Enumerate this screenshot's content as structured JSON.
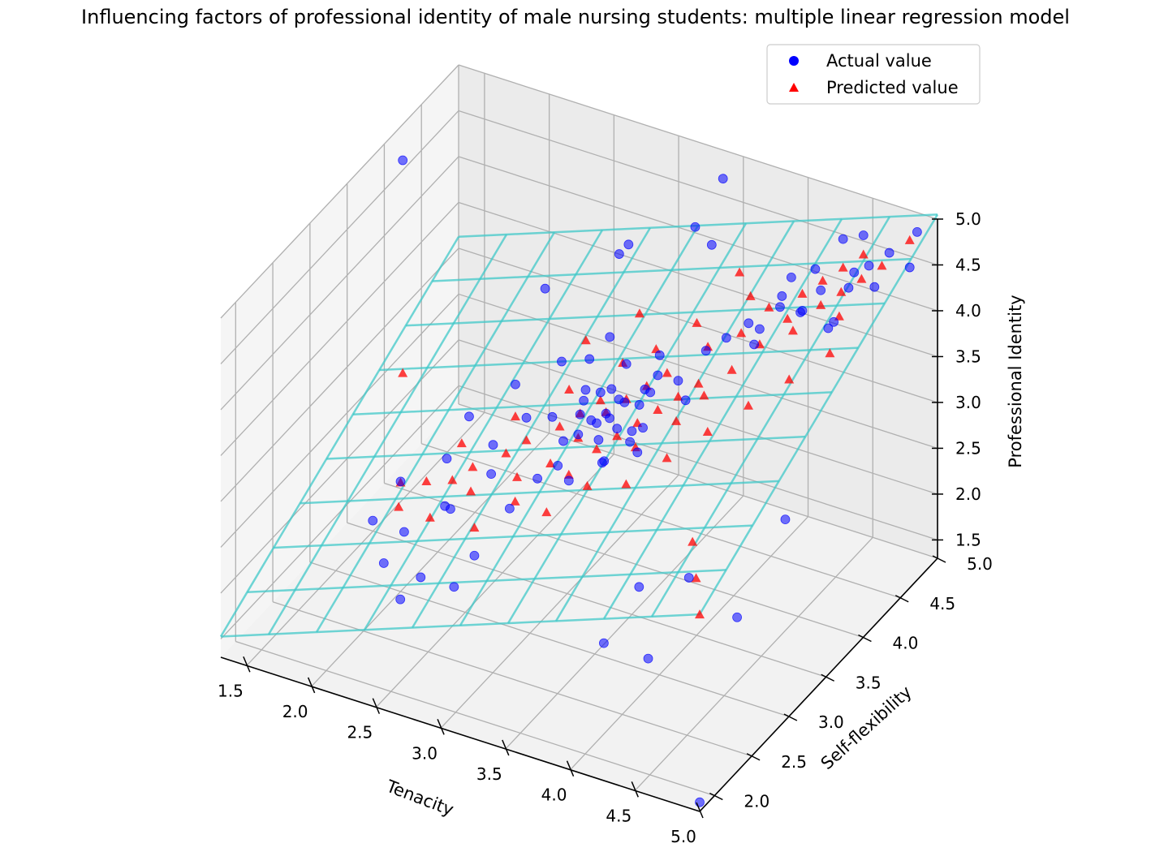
{
  "chart_data": {
    "type": "scatter",
    "projection": "3d",
    "title": "Influencing factors of professional identity of male nursing students: multiple linear regression model",
    "xlabel": "Tenacity",
    "ylabel": "Self-flexibility",
    "zlabel": "Professional Identity",
    "xlim": [
      1.3,
      5.0
    ],
    "ylim": [
      1.8,
      5.0
    ],
    "zlim": [
      1.3,
      5.0
    ],
    "x_ticks": [
      "1.5",
      "2.0",
      "2.5",
      "3.0",
      "3.5",
      "4.0",
      "4.5",
      "5.0"
    ],
    "y_ticks": [
      "2.0",
      "2.5",
      "3.0",
      "3.5",
      "4.0",
      "4.5",
      "5.0"
    ],
    "z_ticks": [
      "1.5",
      "2.0",
      "2.5",
      "3.0",
      "3.5",
      "4.0",
      "4.5",
      "5.0"
    ],
    "grid": true,
    "legend_position": "top-right",
    "regression_plane": {
      "intercept": -0.05,
      "coef_x": 0.52,
      "coef_y": 0.5,
      "color": "#40c8c8"
    },
    "series": [
      {
        "name": "Actual value",
        "marker": "circle",
        "color": "#0000ff",
        "points": [
          [
            3.3,
            3.3,
            3.5
          ],
          [
            3.4,
            3.2,
            3.6
          ],
          [
            3.5,
            3.4,
            3.7
          ],
          [
            3.2,
            3.3,
            3.3
          ],
          [
            3.6,
            3.5,
            3.8
          ],
          [
            3.3,
            3.5,
            3.4
          ],
          [
            3.5,
            3.1,
            3.3
          ],
          [
            3.4,
            3.6,
            3.9
          ],
          [
            3.7,
            3.3,
            3.6
          ],
          [
            3.1,
            3.2,
            3.0
          ],
          [
            3.3,
            3.0,
            3.1
          ],
          [
            3.6,
            3.7,
            4.0
          ],
          [
            3.2,
            3.6,
            3.5
          ],
          [
            3.5,
            3.5,
            3.3
          ],
          [
            3.4,
            3.4,
            3.8
          ],
          [
            3.8,
            3.6,
            3.9
          ],
          [
            3.0,
            3.1,
            2.9
          ],
          [
            3.3,
            3.4,
            3.2
          ],
          [
            3.5,
            3.2,
            3.7
          ],
          [
            3.6,
            3.3,
            3.4
          ],
          [
            3.2,
            3.4,
            3.7
          ],
          [
            3.4,
            3.3,
            3.1
          ],
          [
            3.7,
            3.5,
            4.0
          ],
          [
            3.1,
            3.5,
            3.3
          ],
          [
            3.9,
            3.8,
            4.1
          ],
          [
            3.5,
            3.6,
            3.5
          ],
          [
            3.3,
            3.2,
            3.8
          ],
          [
            3.6,
            3.4,
            3.2
          ],
          [
            3.4,
            3.5,
            3.6
          ],
          [
            3.2,
            3.1,
            3.4
          ],
          [
            4.0,
            3.9,
            4.2
          ],
          [
            3.8,
            3.7,
            3.6
          ],
          [
            3.0,
            3.3,
            3.4
          ],
          [
            3.5,
            3.3,
            3.5
          ],
          [
            3.7,
            3.4,
            3.9
          ],
          [
            4.2,
            4.0,
            4.3
          ],
          [
            4.4,
            4.2,
            4.4
          ],
          [
            4.5,
            4.3,
            4.6
          ],
          [
            4.6,
            4.5,
            4.5
          ],
          [
            4.3,
            4.1,
            4.5
          ],
          [
            4.7,
            4.6,
            4.7
          ],
          [
            4.8,
            4.7,
            4.8
          ],
          [
            4.9,
            4.9,
            4.9
          ],
          [
            4.6,
            4.3,
            4.3
          ],
          [
            4.4,
            4.4,
            4.7
          ],
          [
            4.5,
            4.6,
            4.9
          ],
          [
            4.8,
            4.5,
            4.6
          ],
          [
            4.2,
            4.3,
            4.4
          ],
          [
            4.1,
            4.1,
            4.0
          ],
          [
            4.3,
            4.4,
            4.2
          ],
          [
            4.9,
            4.8,
            4.6
          ],
          [
            4.6,
            4.7,
            4.9
          ],
          [
            4.0,
            4.2,
            4.1
          ],
          [
            4.5,
            4.4,
            4.1
          ],
          [
            4.7,
            4.4,
            4.8
          ],
          [
            2.5,
            2.8,
            2.6
          ],
          [
            2.7,
            3.0,
            2.9
          ],
          [
            2.4,
            2.9,
            2.5
          ],
          [
            2.8,
            2.6,
            2.4
          ],
          [
            2.6,
            3.2,
            3.0
          ],
          [
            2.2,
            2.7,
            2.3
          ],
          [
            2.9,
            2.9,
            2.7
          ],
          [
            2.3,
            3.1,
            2.8
          ],
          [
            2.1,
            2.6,
            2.0
          ],
          [
            2.5,
            2.4,
            2.2
          ],
          [
            2.0,
            3.0,
            2.5
          ],
          [
            2.7,
            2.5,
            2.1
          ],
          [
            1.9,
            2.8,
            2.2
          ],
          [
            2.4,
            2.3,
            2.0
          ],
          [
            2.8,
            3.3,
            3.3
          ],
          [
            2.6,
            3.5,
            3.4
          ],
          [
            2.9,
            3.6,
            3.7
          ],
          [
            2.3,
            3.4,
            3.0
          ],
          [
            3.0,
            3.8,
            3.6
          ],
          [
            3.1,
            3.9,
            3.8
          ],
          [
            1.5,
            3.9,
            5.0
          ],
          [
            5.0,
            1.8,
            1.4
          ],
          [
            3.8,
            2.6,
            1.9
          ],
          [
            4.2,
            2.5,
            2.0
          ],
          [
            4.6,
            3.0,
            2.2
          ],
          [
            3.9,
            2.9,
            2.3
          ],
          [
            4.4,
            2.7,
            2.8
          ],
          [
            4.8,
            3.3,
            3.1
          ],
          [
            2.6,
            3.9,
            4.1
          ],
          [
            3.0,
            4.2,
            4.4
          ],
          [
            3.6,
            4.4,
            4.6
          ],
          [
            2.9,
            4.5,
            4.2
          ],
          [
            3.3,
            4.7,
            4.4
          ],
          [
            4.1,
            4.6,
            4.3
          ],
          [
            3.4,
            4.9,
            4.8
          ]
        ]
      },
      {
        "name": "Predicted value",
        "marker": "triangle",
        "color": "#ff0000",
        "points": [
          [
            2.1,
            2.8
          ],
          [
            2.4,
            2.7
          ],
          [
            2.2,
            3.0
          ],
          [
            2.6,
            2.9
          ],
          [
            2.8,
            2.6
          ],
          [
            2.5,
            3.1
          ],
          [
            2.9,
            3.0
          ],
          [
            2.7,
            3.2
          ],
          [
            3.0,
            2.8
          ],
          [
            3.1,
            3.1
          ],
          [
            3.2,
            3.3
          ],
          [
            3.3,
            3.0
          ],
          [
            3.4,
            3.2
          ],
          [
            3.5,
            3.3
          ],
          [
            3.3,
            3.5
          ],
          [
            3.6,
            3.4
          ],
          [
            3.4,
            3.6
          ],
          [
            3.7,
            3.5
          ],
          [
            3.5,
            3.7
          ],
          [
            3.8,
            3.6
          ],
          [
            3.6,
            3.8
          ],
          [
            3.9,
            3.7
          ],
          [
            3.2,
            3.6
          ],
          [
            3.0,
            3.4
          ],
          [
            2.8,
            3.3
          ],
          [
            3.1,
            3.5
          ],
          [
            3.7,
            3.2
          ],
          [
            3.9,
            3.4
          ],
          [
            4.0,
            3.6
          ],
          [
            4.1,
            3.8
          ],
          [
            4.2,
            4.0
          ],
          [
            4.0,
            4.1
          ],
          [
            4.3,
            4.2
          ],
          [
            4.4,
            4.1
          ],
          [
            4.5,
            4.3
          ],
          [
            4.6,
            4.4
          ],
          [
            4.4,
            4.5
          ],
          [
            4.7,
            4.5
          ],
          [
            4.8,
            4.6
          ],
          [
            4.6,
            4.7
          ],
          [
            4.9,
            4.8
          ],
          [
            4.3,
            4.4
          ],
          [
            4.5,
            4.6
          ],
          [
            4.1,
            4.3
          ],
          [
            4.7,
            4.2
          ],
          [
            3.8,
            4.0
          ],
          [
            3.6,
            4.2
          ],
          [
            3.4,
            4.0
          ],
          [
            3.2,
            3.9
          ],
          [
            2.9,
            3.7
          ],
          [
            2.6,
            3.5
          ],
          [
            2.3,
            3.3
          ],
          [
            2.4,
            3.0
          ],
          [
            2.0,
            3.0
          ],
          [
            3.5,
            2.9
          ],
          [
            3.3,
            2.7
          ],
          [
            3.8,
            2.9
          ],
          [
            4.0,
            3.1
          ],
          [
            4.2,
            3.3
          ],
          [
            4.4,
            3.5
          ],
          [
            4.6,
            3.7
          ],
          [
            4.8,
            3.9
          ],
          [
            1.5,
            3.9
          ],
          [
            4.6,
            2.4
          ],
          [
            4.8,
            2.1
          ],
          [
            5.0,
            1.8
          ],
          [
            3.9,
            4.4
          ],
          [
            3.7,
            4.6
          ],
          [
            3.1,
            4.3
          ],
          [
            2.8,
            4.1
          ]
        ]
      }
    ]
  }
}
